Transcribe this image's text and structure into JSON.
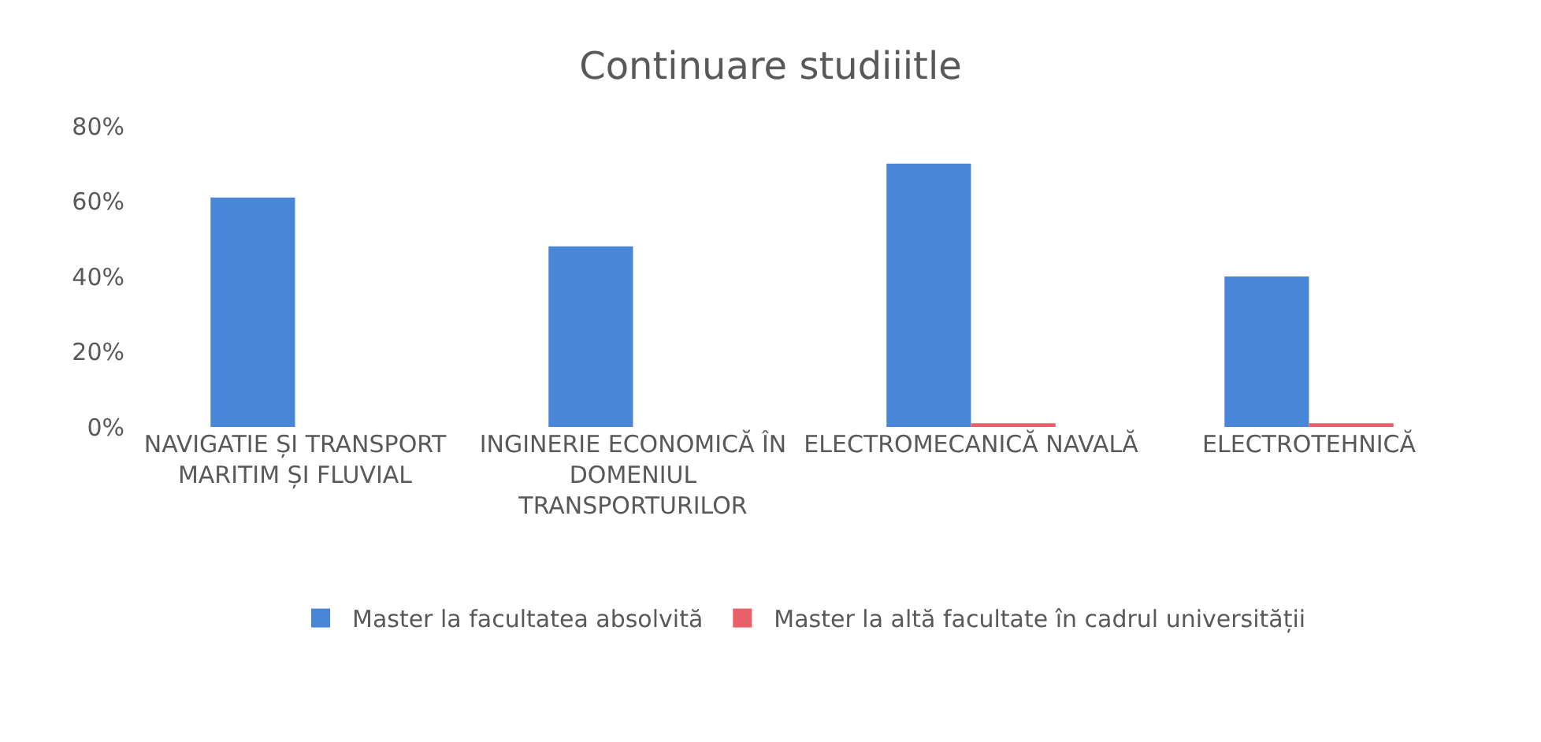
{
  "chart_data": {
    "type": "bar",
    "title": "Continuare studiiitle",
    "categories": [
      "NAVIGATIE ȘI TRANSPORT MARITIM ȘI FLUVIAL",
      "INGINERIE ECONOMICĂ ÎN DOMENIUL TRANSPORTURILOR",
      "ELECTROMECANICĂ NAVALĂ",
      "ELECTROTEHNICĂ"
    ],
    "series": [
      {
        "name": "Master la facultatea absolvită",
        "color": "#4a86d8",
        "values": [
          61,
          48,
          70,
          40
        ]
      },
      {
        "name": "Master la altă facultate în cadrul universității",
        "color": "#e8606a",
        "values": [
          null,
          null,
          1,
          1
        ]
      }
    ],
    "ylim": [
      0,
      80
    ],
    "yticks": [
      {
        "value": 0,
        "label": "0%"
      },
      {
        "value": 20,
        "label": "20%"
      },
      {
        "value": 40,
        "label": "40%"
      },
      {
        "value": 60,
        "label": "60%"
      },
      {
        "value": 80,
        "label": "80%"
      }
    ],
    "grid": false,
    "legend": "bottom"
  }
}
